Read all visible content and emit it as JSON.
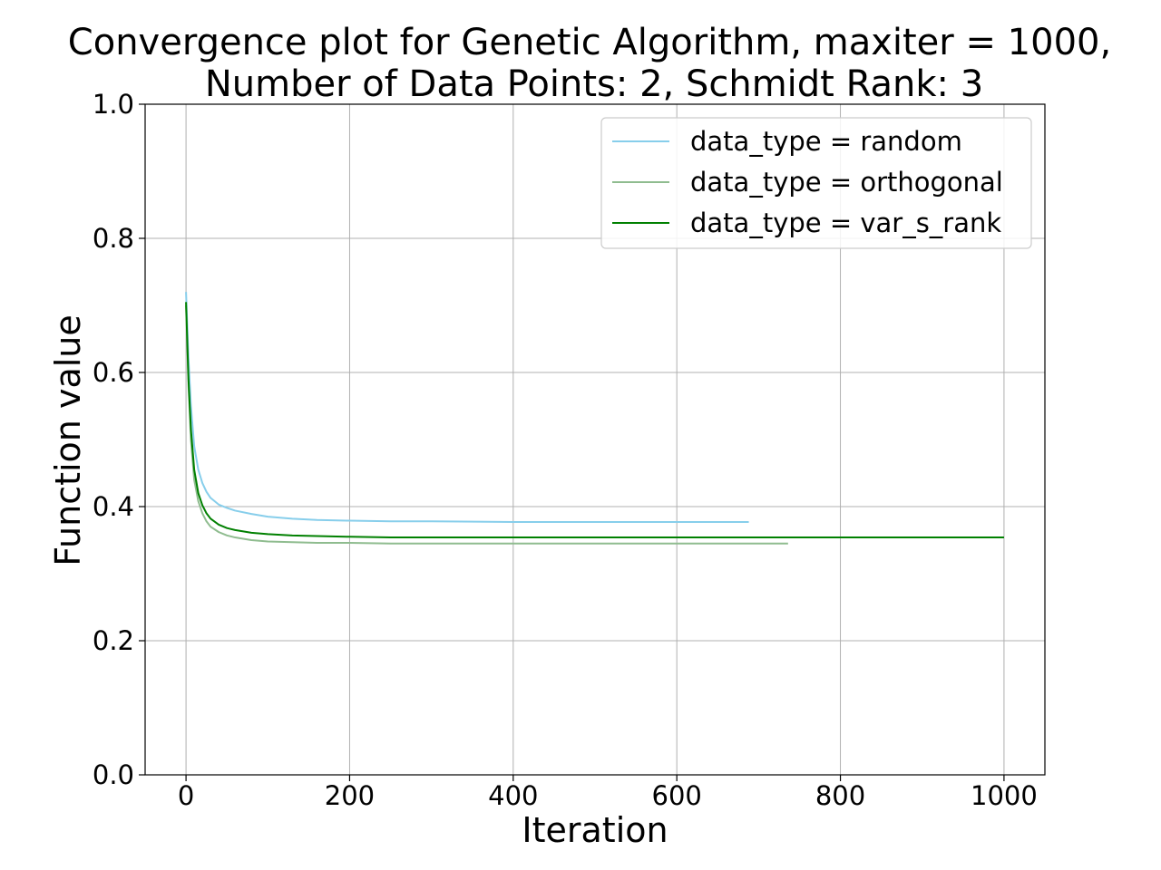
{
  "chart_data": {
    "type": "line",
    "title": "Convergence plot for Genetic Algorithm, maxiter = 1000,\nNumber of Data Points: 2, Schmidt Rank: 3",
    "title_lines": [
      "Convergence plot for Genetic Algorithm, maxiter = 1000,",
      "Number of Data Points: 2, Schmidt Rank: 3"
    ],
    "xlabel": "Iteration",
    "ylabel": "Function value",
    "xlim": [
      -50,
      1050
    ],
    "ylim": [
      0.0,
      1.0
    ],
    "xticks": [
      0,
      200,
      400,
      600,
      800,
      1000
    ],
    "yticks": [
      0.0,
      0.2,
      0.4,
      0.6,
      0.8,
      1.0
    ],
    "xtick_labels": [
      "0",
      "200",
      "400",
      "600",
      "800",
      "1000"
    ],
    "ytick_labels": [
      "0.0",
      "0.2",
      "0.4",
      "0.6",
      "0.8",
      "1.0"
    ],
    "grid": true,
    "legend_position": "top-right",
    "series": [
      {
        "name": "data_type = random",
        "color": "#87ceeb",
        "x": [
          0,
          3,
          6,
          10,
          15,
          20,
          25,
          30,
          40,
          50,
          60,
          80,
          100,
          130,
          160,
          200,
          250,
          300,
          400,
          500,
          600,
          688
        ],
        "y": [
          0.72,
          0.62,
          0.55,
          0.49,
          0.455,
          0.435,
          0.422,
          0.413,
          0.403,
          0.398,
          0.394,
          0.389,
          0.385,
          0.382,
          0.38,
          0.379,
          0.378,
          0.378,
          0.377,
          0.377,
          0.377,
          0.377
        ]
      },
      {
        "name": "data_type = orthogonal",
        "color": "#8fbc8f",
        "x": [
          0,
          3,
          6,
          10,
          15,
          20,
          25,
          30,
          40,
          50,
          60,
          80,
          100,
          130,
          160,
          200,
          250,
          300,
          400,
          500,
          600,
          736
        ],
        "y": [
          0.7,
          0.58,
          0.5,
          0.44,
          0.408,
          0.39,
          0.378,
          0.37,
          0.362,
          0.357,
          0.354,
          0.35,
          0.348,
          0.347,
          0.346,
          0.346,
          0.345,
          0.345,
          0.345,
          0.345,
          0.345,
          0.345
        ]
      },
      {
        "name": "data_type = var_s_rank",
        "color": "#008000",
        "x": [
          0,
          3,
          6,
          10,
          15,
          20,
          25,
          30,
          40,
          50,
          60,
          80,
          100,
          130,
          160,
          200,
          250,
          300,
          400,
          500,
          600,
          700,
          800,
          900,
          1000
        ],
        "y": [
          0.705,
          0.59,
          0.515,
          0.455,
          0.42,
          0.402,
          0.39,
          0.382,
          0.373,
          0.368,
          0.365,
          0.361,
          0.359,
          0.357,
          0.356,
          0.355,
          0.354,
          0.354,
          0.354,
          0.354,
          0.354,
          0.354,
          0.354,
          0.354,
          0.354
        ]
      }
    ]
  }
}
